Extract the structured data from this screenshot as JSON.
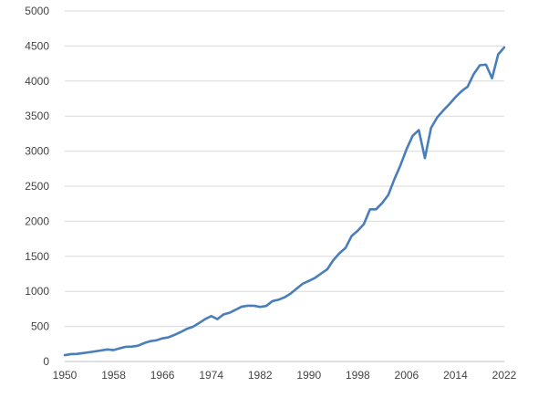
{
  "chart_data": {
    "type": "line",
    "title": "",
    "xlabel": "",
    "ylabel": "",
    "xlim": [
      1950,
      2022
    ],
    "ylim": [
      0,
      5000
    ],
    "x_ticks": [
      "1950",
      "1958",
      "1966",
      "1974",
      "1982",
      "1990",
      "1998",
      "2006",
      "2014",
      "2022"
    ],
    "y_ticks": [
      "0",
      "500",
      "1000",
      "1500",
      "2000",
      "2500",
      "3000",
      "3500",
      "4000",
      "4500",
      "5000"
    ],
    "grid": true,
    "legend": "none",
    "line_color": "#4a7ebb",
    "x": [
      1950,
      1951,
      1952,
      1953,
      1954,
      1955,
      1956,
      1957,
      1958,
      1959,
      1960,
      1961,
      1962,
      1963,
      1964,
      1965,
      1966,
      1967,
      1968,
      1969,
      1970,
      1971,
      1972,
      1973,
      1974,
      1975,
      1976,
      1977,
      1978,
      1979,
      1980,
      1981,
      1982,
      1983,
      1984,
      1985,
      1986,
      1987,
      1988,
      1989,
      1990,
      1991,
      1992,
      1993,
      1994,
      1995,
      1996,
      1997,
      1998,
      1999,
      2000,
      2001,
      2002,
      2003,
      2004,
      2005,
      2006,
      2007,
      2008,
      2009,
      2010,
      2011,
      2012,
      2013,
      2014,
      2015,
      2016,
      2017,
      2018,
      2019,
      2020,
      2021,
      2022
    ],
    "series": [
      {
        "values": [
          90,
          105,
          108,
          120,
          132,
          145,
          158,
          172,
          162,
          188,
          210,
          212,
          225,
          262,
          290,
          302,
          330,
          345,
          380,
          420,
          465,
          495,
          548,
          605,
          648,
          605,
          670,
          695,
          738,
          782,
          795,
          795,
          778,
          792,
          860,
          880,
          915,
          968,
          1040,
          1110,
          1150,
          1192,
          1255,
          1315,
          1445,
          1545,
          1620,
          1790,
          1865,
          1960,
          2170,
          2170,
          2260,
          2375,
          2600,
          2800,
          3030,
          3220,
          3300,
          2900,
          3330,
          3480,
          3580,
          3670,
          3770,
          3855,
          3920,
          4100,
          4225,
          4235,
          4040,
          4380,
          4480
        ]
      }
    ]
  }
}
